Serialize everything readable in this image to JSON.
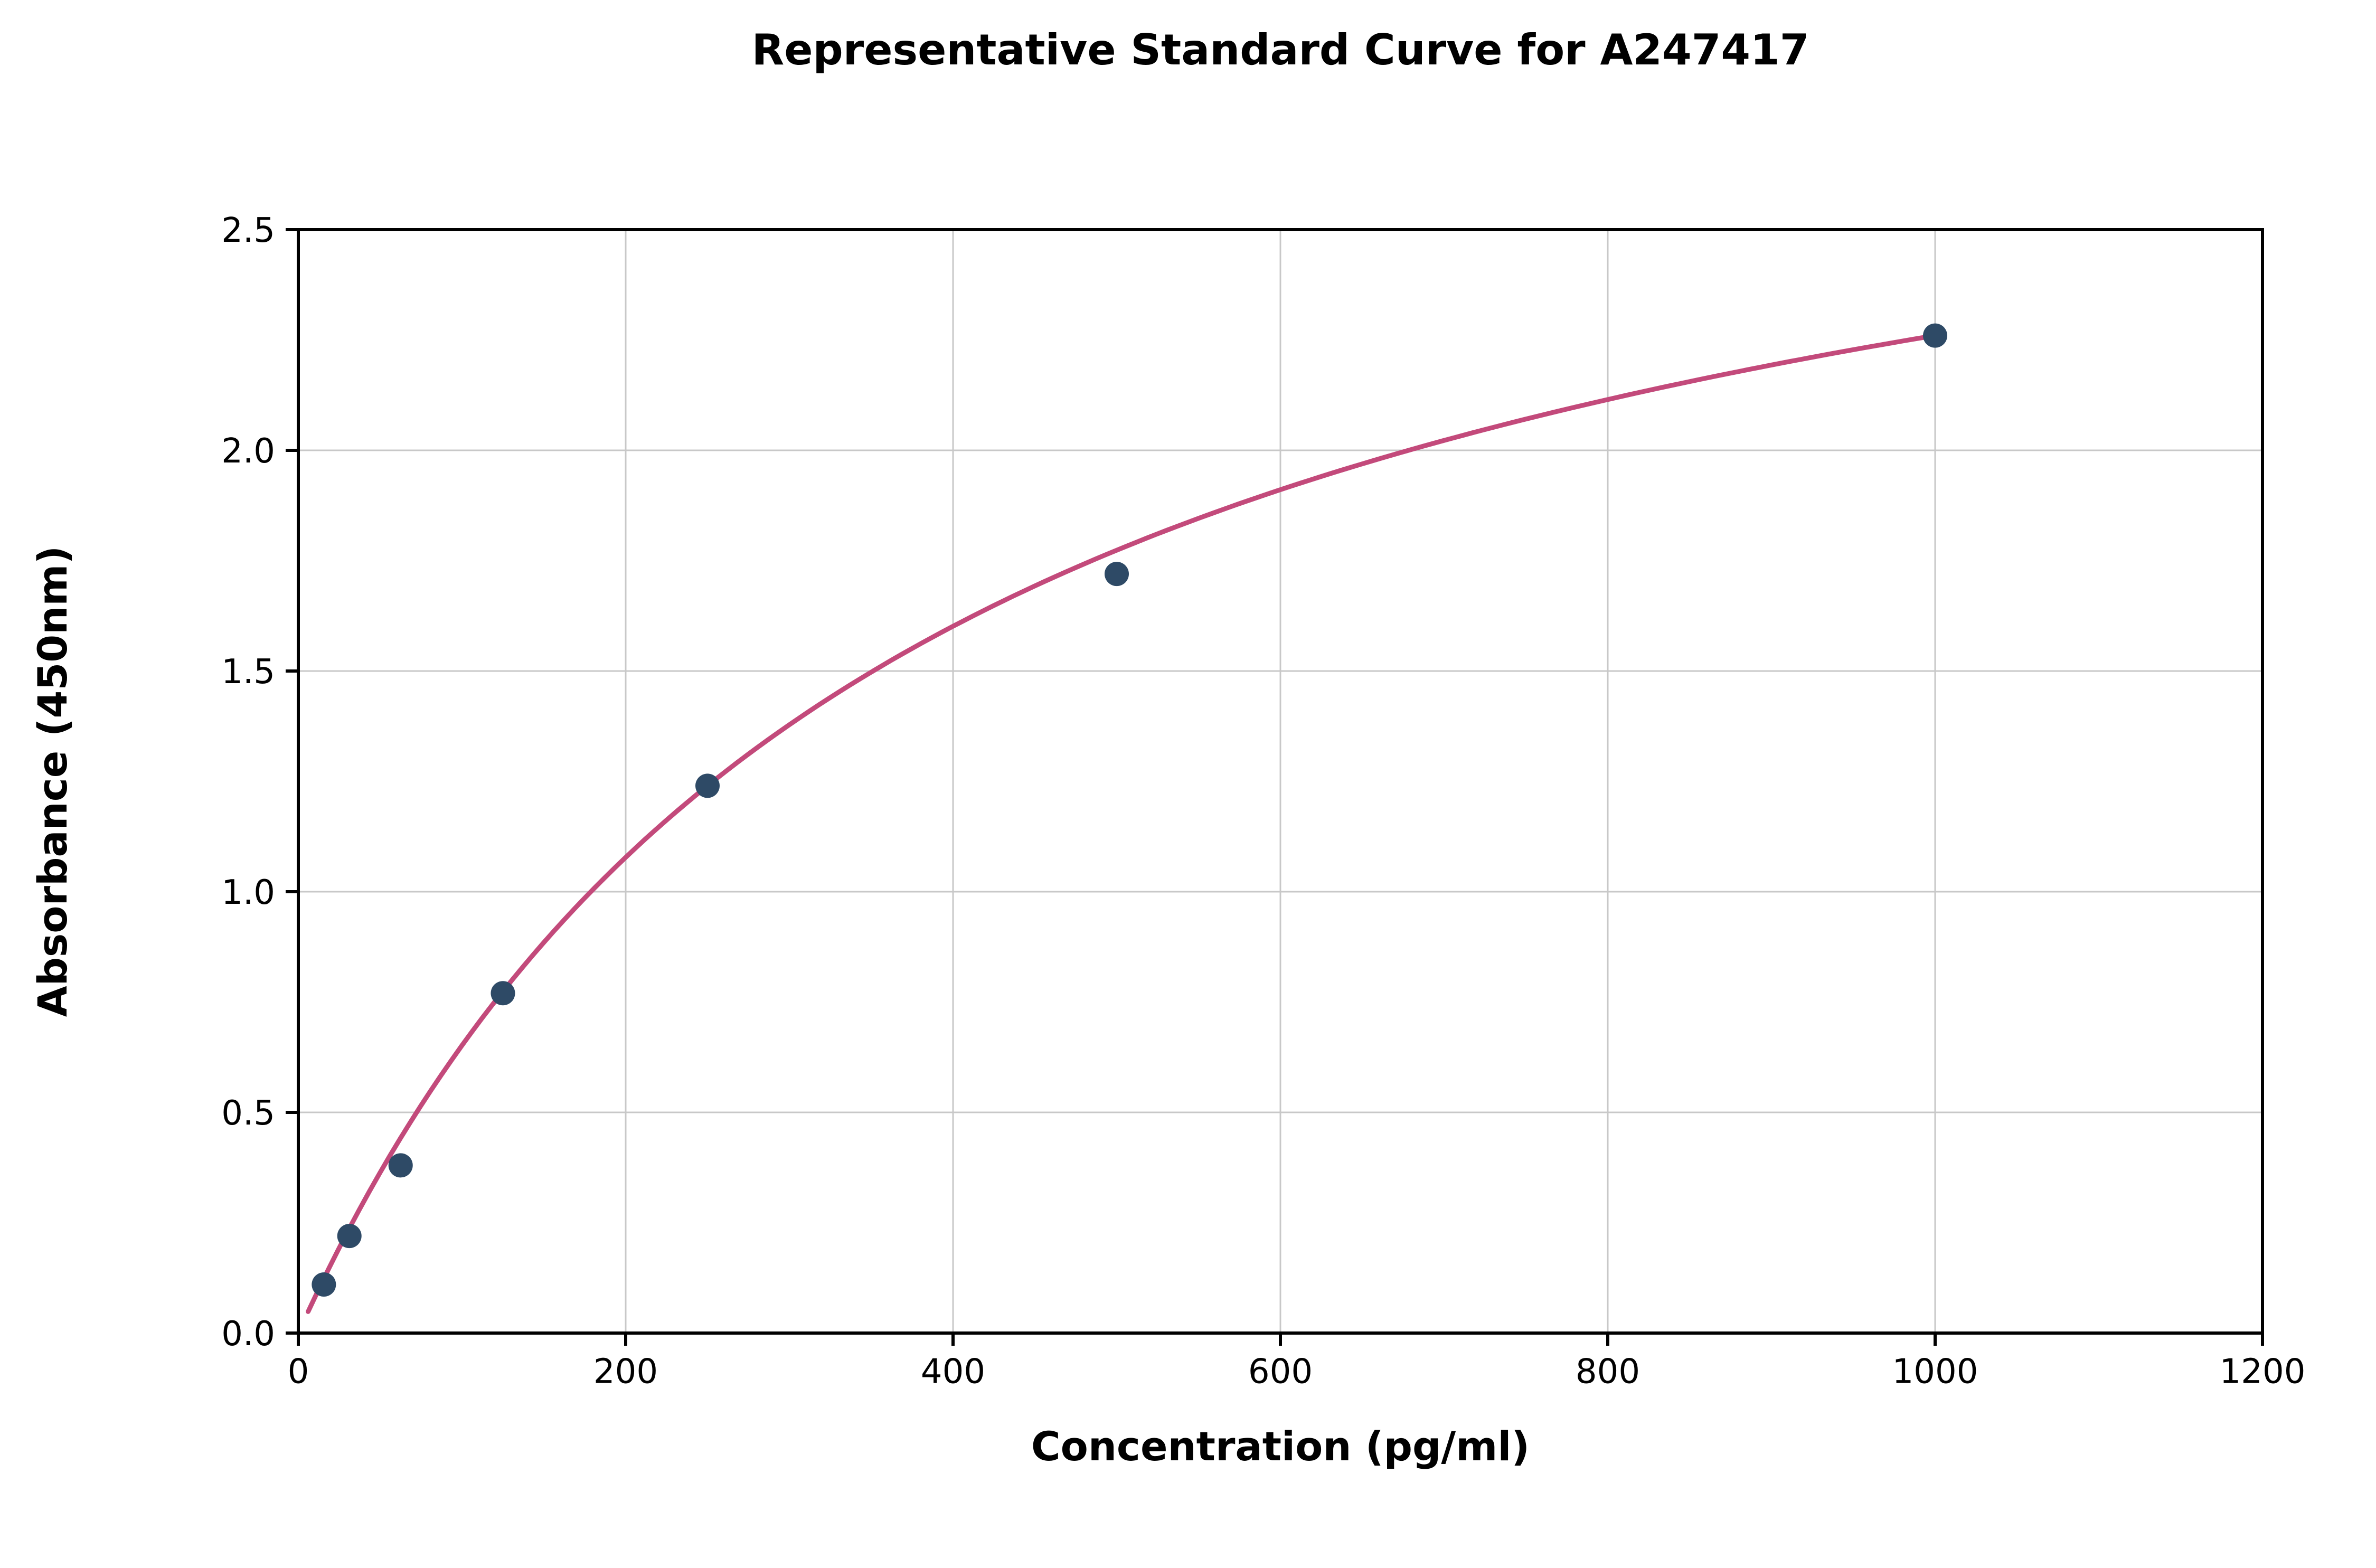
{
  "chart_data": {
    "type": "scatter",
    "title": "Representative Standard Curve for A247417",
    "xlabel": "Concentration (pg/ml)",
    "ylabel": "Absorbance (450nm)",
    "xlim": [
      0,
      1200
    ],
    "ylim": [
      0.0,
      2.5
    ],
    "xticks": [
      0,
      200,
      400,
      600,
      800,
      1000,
      1200
    ],
    "xtick_labels": [
      "0",
      "200",
      "400",
      "600",
      "800",
      "1000",
      "1200"
    ],
    "yticks": [
      0.0,
      0.5,
      1.0,
      1.5,
      2.0,
      2.5
    ],
    "ytick_labels": [
      "0.0",
      "0.5",
      "1.0",
      "1.5",
      "2.0",
      "2.5"
    ],
    "grid": true,
    "grid_color": "#c8c8c8",
    "axis_color": "#000000",
    "background_color": "#ffffff",
    "legend": "none",
    "series": [
      {
        "name": "standard-points",
        "type": "scatter",
        "color": "#2e4a66",
        "points": [
          {
            "x": 15.6,
            "y": 0.11
          },
          {
            "x": 31.2,
            "y": 0.22
          },
          {
            "x": 62.5,
            "y": 0.38
          },
          {
            "x": 125,
            "y": 0.77
          },
          {
            "x": 250,
            "y": 1.24
          },
          {
            "x": 500,
            "y": 1.72
          },
          {
            "x": 1000,
            "y": 2.26
          }
        ]
      },
      {
        "name": "fit-curve",
        "type": "line",
        "color": "#c34a7b",
        "model": "y = a*x/(b+x)",
        "a": 3.114,
        "b": 377.8,
        "x_start": 6,
        "x_end": 1005
      }
    ]
  }
}
